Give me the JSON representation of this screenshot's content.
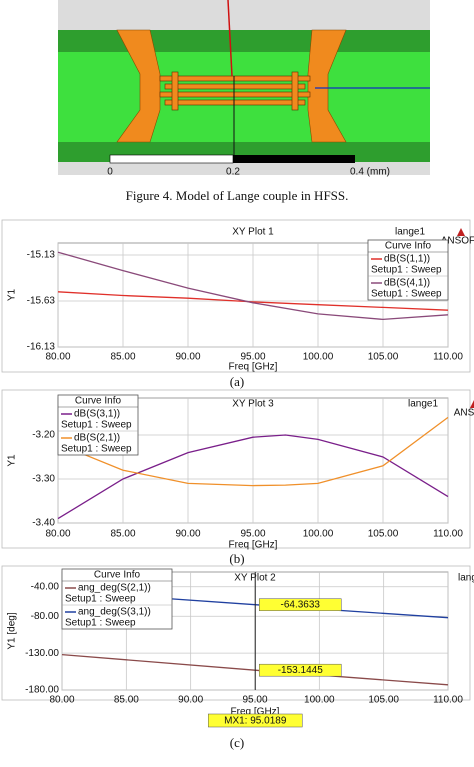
{
  "figure4": {
    "scale_labels": [
      "0",
      "0.2",
      "0.4 (mm)"
    ],
    "caption": "Figure 4.    Model of Lange couple in HFSS."
  },
  "chart_data": [
    {
      "type": "line",
      "title": "XY Plot 1",
      "xlabel": "Freq [GHz]",
      "ylabel": "Y1",
      "corner_label": "lange1",
      "logo": "ANSOFT",
      "legend_title": "Curve Info",
      "legend": "top-right",
      "grid": true,
      "x": [
        80,
        85,
        90,
        95,
        100,
        105,
        110
      ],
      "series": [
        {
          "name": "dB(S(1,1))",
          "setup": "Setup1 : Sweep",
          "color": "#e0302a",
          "values": [
            -15.53,
            -15.57,
            -15.6,
            -15.64,
            -15.67,
            -15.7,
            -15.73
          ]
        },
        {
          "name": "dB(S(4,1))",
          "setup": "Setup1 : Sweep",
          "color": "#8a4a7a",
          "values": [
            -15.1,
            -15.3,
            -15.49,
            -15.65,
            -15.77,
            -15.83,
            -15.78
          ]
        }
      ],
      "xlim": [
        80,
        110
      ],
      "xticks": [
        {
          "value": 80,
          "label": "80.00"
        },
        {
          "value": 85,
          "label": "85.00"
        },
        {
          "value": 90,
          "label": "90.00"
        },
        {
          "value": 95,
          "label": "95.00"
        },
        {
          "value": 100,
          "label": "100.00"
        },
        {
          "value": 105,
          "label": "105.00"
        },
        {
          "value": 110,
          "label": "110.00"
        }
      ],
      "ylim": [
        -16.13,
        -15.0
      ],
      "yticks": [
        -16.13,
        -15.63,
        -15.13
      ]
    },
    {
      "type": "line",
      "title": "XY Plot 3",
      "xlabel": "Freq [GHz]",
      "ylabel": "Y1",
      "corner_label": "lange1",
      "logo": "ANSOFT",
      "legend_title": "Curve Info",
      "legend": "top-left",
      "grid": true,
      "x": [
        80,
        85,
        90,
        95,
        97.5,
        100,
        105,
        110
      ],
      "series": [
        {
          "name": "dB(S(3,1))",
          "setup": "Setup1 : Sweep",
          "color": "#7a1f8a",
          "values": [
            -3.39,
            -3.3,
            -3.24,
            -3.205,
            -3.2,
            -3.21,
            -3.25,
            -3.34
          ]
        },
        {
          "name": "dB(S(2,1))",
          "setup": "Setup1 : Sweep",
          "color": "#f0902a",
          "values": [
            -3.22,
            -3.28,
            -3.31,
            -3.315,
            -3.314,
            -3.31,
            -3.27,
            -3.16
          ]
        }
      ],
      "xlim": [
        80,
        110
      ],
      "xticks": [
        {
          "value": 80,
          "label": "80.00"
        },
        {
          "value": 85,
          "label": "85.00"
        },
        {
          "value": 90,
          "label": "90.00"
        },
        {
          "value": 95,
          "label": "95.00"
        },
        {
          "value": 100,
          "label": "100.00"
        },
        {
          "value": 105,
          "label": "105.00"
        },
        {
          "value": 110,
          "label": "110.00"
        }
      ],
      "ylim": [
        -3.4,
        -3.116
      ],
      "yticks": [
        {
          "value": -3.4,
          "label": "-3.40"
        },
        {
          "value": -3.3,
          "label": "-3.30"
        },
        {
          "value": -3.2,
          "label": "-3.20"
        }
      ]
    },
    {
      "type": "line",
      "title": "XY Plot 2",
      "xlabel": "Freq [GHz]",
      "ylabel": "Y1 [deg]",
      "corner_label": "lang",
      "legend_title": "Curve Info",
      "legend": "top-left",
      "grid": true,
      "x": [
        80,
        95,
        110
      ],
      "series": [
        {
          "name": "ang_deg(S(2,1))",
          "setup": "Setup1 : Sweep",
          "color": "#8a4a4a",
          "values": [
            -132,
            -153.1445,
            -173
          ]
        },
        {
          "name": "ang_deg(S(3,1))",
          "setup": "Setup1 : Sweep",
          "color": "#2040a0",
          "values": [
            -46,
            -64.3633,
            -82
          ]
        }
      ],
      "marker_x": 95.0189,
      "marker_label": "MX1: 95.0189",
      "marker_values": [
        -153.1445,
        -64.3633
      ],
      "xlim": [
        80,
        110
      ],
      "xticks": [
        {
          "value": 80,
          "label": "80.00"
        },
        {
          "value": 85,
          "label": "85.00"
        },
        {
          "value": 90,
          "label": "90.00"
        },
        {
          "value": 95,
          "label": "95.00"
        },
        {
          "value": 100,
          "label": "100.00"
        },
        {
          "value": 105,
          "label": "105.00"
        },
        {
          "value": 110,
          "label": "110.00"
        }
      ],
      "ylim": [
        -180,
        -20
      ],
      "yticks": [
        {
          "value": -180,
          "label": "-180.00"
        },
        {
          "value": -130,
          "label": "-130.00"
        },
        {
          "value": -80,
          "label": "-80.00"
        },
        {
          "value": -40,
          "label": "-40.00"
        }
      ]
    }
  ],
  "subcaptions": [
    "(a)",
    "(b)",
    "(c)"
  ]
}
